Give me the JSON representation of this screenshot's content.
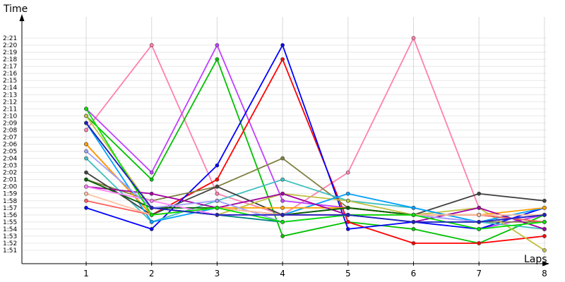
{
  "chart_data": {
    "type": "line",
    "y_axis_label": "Time",
    "x_axis_label": "Laps",
    "x": [
      1,
      2,
      3,
      4,
      5,
      6,
      7,
      8
    ],
    "x_tick_labels": [
      "1",
      "2",
      "3",
      "4",
      "5",
      "6",
      "7",
      "8"
    ],
    "y_tick_labels": [
      "1:51",
      "1:52",
      "1:53",
      "1:54",
      "1:55",
      "1:56",
      "1:57",
      "1:58",
      "1:59",
      "2:00",
      "2:01",
      "2:02",
      "2:03",
      "2:04",
      "2:05",
      "2:06",
      "2:07",
      "2:08",
      "2:09",
      "2:10",
      "2:11",
      "2:12",
      "2:13",
      "2:14",
      "2:15",
      "2:16",
      "2:17",
      "2:18",
      "2:19",
      "2:20",
      "2:21"
    ],
    "y_unit": "seconds",
    "y_range": [
      111,
      141
    ],
    "grid": true,
    "legend": "none",
    "series": [
      {
        "color": "#ff80b0",
        "values": [
          128,
          140,
          119,
          116,
          122,
          141,
          117,
          114
        ]
      },
      {
        "color": "#c040ff",
        "values": [
          131,
          122,
          140,
          118,
          117,
          116,
          114,
          116
        ]
      },
      {
        "color": "#00c000",
        "values": [
          130,
          121,
          138,
          113,
          115,
          114,
          112,
          116
        ]
      },
      {
        "color": "#ff0000",
        "values": [
          126,
          116,
          121,
          138,
          115,
          112,
          112,
          113
        ]
      },
      {
        "color": "#0000ff",
        "values": [
          117,
          114,
          123,
          140,
          114,
          115,
          114,
          117
        ]
      },
      {
        "color": "#808040",
        "values": [
          121,
          118,
          120,
          124,
          117,
          116,
          115,
          115
        ]
      },
      {
        "color": "#40c0c0",
        "values": [
          124,
          115,
          118,
          121,
          118,
          117,
          115,
          114
        ]
      },
      {
        "color": "#404040",
        "values": [
          122,
          116,
          120,
          116,
          117,
          116,
          119,
          118
        ]
      },
      {
        "color": "#c0c040",
        "values": [
          130,
          117,
          116,
          119,
          118,
          116,
          117,
          111
        ]
      },
      {
        "color": "#00a0ff",
        "values": [
          129,
          115,
          117,
          116,
          119,
          117,
          115,
          117
        ]
      },
      {
        "color": "#ffa000",
        "values": [
          126,
          116,
          117,
          117,
          117,
          116,
          116,
          117
        ]
      },
      {
        "color": "#a000a0",
        "values": [
          120,
          119,
          117,
          119,
          116,
          115,
          117,
          114
        ]
      },
      {
        "color": "#008080",
        "values": [
          129,
          117,
          116,
          115,
          116,
          115,
          115,
          116
        ]
      },
      {
        "color": "#006000",
        "values": [
          121,
          117,
          117,
          116,
          117,
          116,
          116,
          115
        ]
      },
      {
        "color": "#ff6060",
        "values": [
          118,
          116,
          117,
          116,
          116,
          116,
          116,
          115
        ]
      },
      {
        "color": "#ff80ff",
        "values": [
          120,
          118,
          116,
          116,
          116,
          116,
          115,
          116
        ]
      },
      {
        "color": "#a0a0ff",
        "values": [
          125,
          117,
          118,
          115,
          116,
          116,
          115,
          116
        ]
      },
      {
        "color": "#ffc0a0",
        "values": [
          119,
          116,
          117,
          116,
          116,
          116,
          116,
          116
        ]
      },
      {
        "color": "#00e000",
        "values": [
          131,
          116,
          117,
          115,
          116,
          116,
          114,
          115
        ]
      },
      {
        "color": "#2020c0",
        "values": [
          129,
          117,
          116,
          116,
          116,
          115,
          115,
          116
        ]
      }
    ]
  }
}
